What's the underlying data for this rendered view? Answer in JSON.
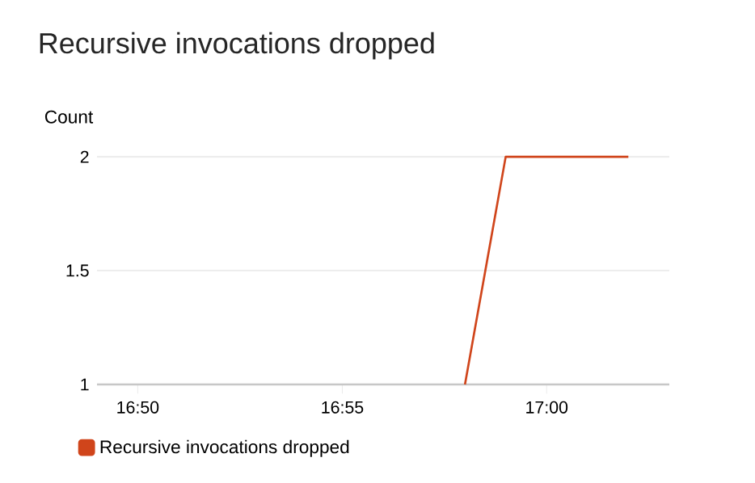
{
  "chart_data": {
    "type": "line",
    "title": "Recursive invocations dropped",
    "ylabel": "Count",
    "x": [
      16.9667,
      16.9833,
      17.0333
    ],
    "series": [
      {
        "name": "Recursive invocations dropped",
        "color": "#d0451b",
        "values": [
          1,
          2,
          2
        ]
      }
    ],
    "xlim": [
      16.8167,
      17.05
    ],
    "xticks": [
      {
        "value": 16.8333,
        "label": "16:50"
      },
      {
        "value": 16.9167,
        "label": "16:55"
      },
      {
        "value": 17.0,
        "label": "17:00"
      }
    ],
    "ylim": [
      1,
      2
    ],
    "yticks": [
      1,
      1.5,
      2
    ],
    "grid": "y",
    "legend": "bottom"
  }
}
